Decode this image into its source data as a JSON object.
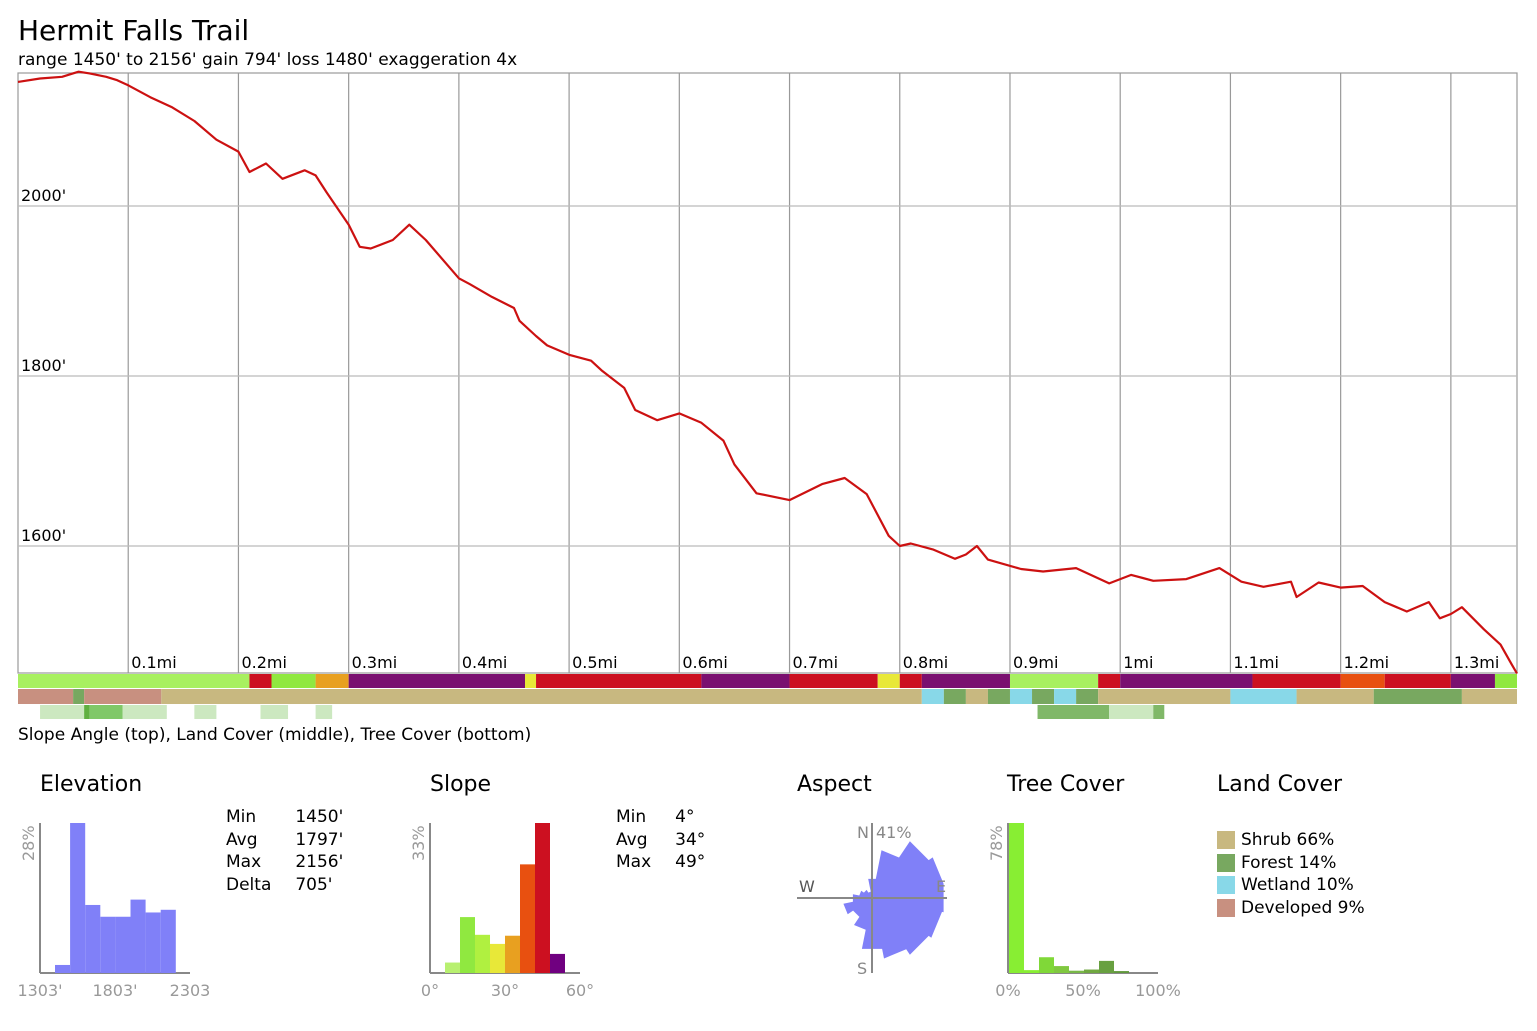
{
  "title": "Hermit Falls Trail",
  "subtitle": "range 1450' to 2156'  gain 794'  loss 1480'  exaggeration 4x",
  "strip_caption": "Slope Angle (top), Land Cover (middle), Tree Cover (bottom)",
  "colors": {
    "profile_line": "#cc1111",
    "grid": "#999999",
    "elevation_hist": "#8080f8",
    "aspect_rose": "#8080f8",
    "tree_hist": "#88ee33",
    "shrub": "#c8b880",
    "forest": "#78a860",
    "wetland": "#88d8e8",
    "developed": "#c89080"
  },
  "chart_data": [
    {
      "type": "line",
      "name": "elevation-profile",
      "x_unit": "mi",
      "xlim": [
        0,
        1.36
      ],
      "ylim": [
        1450,
        2156
      ],
      "y_ticks": [
        2000,
        1800,
        1600
      ],
      "y_tick_labels": [
        "2000'",
        "1800'",
        "1600'"
      ],
      "x_ticks": [
        0.1,
        0.2,
        0.3,
        0.4,
        0.5,
        0.6,
        0.7,
        0.8,
        0.9,
        1.0,
        1.1,
        1.2,
        1.3
      ],
      "x_tick_labels": [
        "0.1mi",
        "0.2mi",
        "0.3mi",
        "0.4mi",
        "0.5mi",
        "0.6mi",
        "0.7mi",
        "0.8mi",
        "0.9mi",
        "1mi",
        "1.1mi",
        "1.2mi",
        "1.3mi"
      ],
      "grid": true,
      "x": [
        0,
        0.02,
        0.04,
        0.055,
        0.065,
        0.08,
        0.09,
        0.1,
        0.12,
        0.14,
        0.16,
        0.18,
        0.2,
        0.21,
        0.225,
        0.24,
        0.26,
        0.27,
        0.28,
        0.3,
        0.31,
        0.32,
        0.34,
        0.355,
        0.37,
        0.4,
        0.41,
        0.43,
        0.45,
        0.455,
        0.47,
        0.48,
        0.5,
        0.52,
        0.53,
        0.55,
        0.56,
        0.58,
        0.6,
        0.62,
        0.64,
        0.65,
        0.67,
        0.7,
        0.73,
        0.75,
        0.77,
        0.79,
        0.8,
        0.81,
        0.83,
        0.85,
        0.86,
        0.87,
        0.88,
        0.91,
        0.93,
        0.96,
        0.99,
        1.01,
        1.03,
        1.06,
        1.09,
        1.11,
        1.13,
        1.155,
        1.16,
        1.18,
        1.2,
        1.22,
        1.24,
        1.26,
        1.28,
        1.29,
        1.3,
        1.31,
        1.33,
        1.345,
        1.355,
        1.36
      ],
      "y": [
        2146,
        2150,
        2152,
        2158,
        2156,
        2152,
        2148,
        2142,
        2128,
        2116,
        2100,
        2078,
        2064,
        2040,
        2050,
        2032,
        2042,
        2036,
        2016,
        1978,
        1952,
        1950,
        1960,
        1978,
        1960,
        1915,
        1908,
        1893,
        1880,
        1865,
        1847,
        1836,
        1825,
        1818,
        1806,
        1786,
        1760,
        1748,
        1756,
        1745,
        1724,
        1696,
        1662,
        1654,
        1673,
        1680,
        1661,
        1612,
        1600,
        1603,
        1596,
        1585,
        1590,
        1600,
        1584,
        1573,
        1570,
        1574,
        1556,
        1566,
        1559,
        1561,
        1574,
        1558,
        1552,
        1558,
        1540,
        1557,
        1551,
        1553,
        1534,
        1523,
        1534,
        1515,
        1520,
        1528,
        1502,
        1484,
        1461,
        1450
      ]
    },
    {
      "type": "bar",
      "name": "Elevation",
      "title": "Elevation",
      "y_axis_label": "28%",
      "x_tick_labels": [
        "1303'",
        "1803'",
        "2303"
      ],
      "xlim": [
        1303,
        2303
      ],
      "categories": [
        "1403-1503",
        "1503-1603",
        "1603-1703",
        "1703-1803",
        "1803-1903",
        "1903-2003",
        "2003-2103",
        "2103-2203"
      ],
      "values": [
        1.5,
        28,
        12.7,
        10.5,
        10.5,
        13.7,
        11.3,
        11.8
      ]
    },
    {
      "type": "bar",
      "name": "Slope",
      "title": "Slope",
      "y_axis_label": "33%",
      "x_tick_labels": [
        "0°",
        "30°",
        "60°"
      ],
      "xlim": [
        0,
        60
      ],
      "categories": [
        "5-10",
        "10-15",
        "15-20",
        "20-25",
        "25-30",
        "30-35",
        "35-40",
        "40-45",
        "45-50"
      ],
      "values": [
        2.3,
        12.3,
        8.4,
        6.4,
        8.2,
        23.9,
        33,
        4.2,
        0
      ],
      "bar_colors": [
        "#b8f070",
        "#90e840",
        "#b0f040",
        "#e8e838",
        "#e8a020",
        "#e85010",
        "#cc1020",
        "#700080",
        "#1020d0"
      ]
    },
    {
      "type": "pie",
      "name": "Aspect",
      "title": "Aspect",
      "direction_labels": [
        "N",
        "E",
        "S",
        "W"
      ],
      "max_label": "41%",
      "categories": [
        "N",
        "NNE",
        "NE",
        "ENE",
        "E",
        "ESE",
        "SE",
        "SSE",
        "S",
        "SSW",
        "SW",
        "WSW",
        "W",
        "WNW",
        "NW",
        "NNW"
      ],
      "values": [
        12,
        30,
        42,
        45,
        45,
        44,
        42,
        38,
        32,
        20,
        14,
        18,
        12,
        8,
        6,
        4
      ]
    },
    {
      "type": "bar",
      "name": "Tree Cover",
      "title": "Tree Cover",
      "y_axis_label": "78%",
      "x_tick_labels": [
        "0%",
        "50%",
        "100%"
      ],
      "xlim": [
        0,
        100
      ],
      "categories": [
        "0-10",
        "10-20",
        "20-30",
        "30-40",
        "40-50",
        "50-60",
        "60-70",
        "70-80",
        "80-90",
        "90-100"
      ],
      "values": [
        78,
        1.5,
        8.2,
        3.6,
        1.2,
        1.8,
        6.3,
        1,
        0,
        0
      ],
      "bar_colors": [
        "#88ee33",
        "#88ee33",
        "#80d838",
        "#80c840",
        "#78b848",
        "#70a840",
        "#68a040",
        "#60983c",
        "#589038",
        "#508834"
      ]
    },
    {
      "type": "table",
      "name": "Land Cover",
      "title": "Land Cover",
      "categories": [
        "Shrub",
        "Forest",
        "Wetland",
        "Developed"
      ],
      "values": [
        66,
        14,
        10,
        9
      ],
      "labels": [
        "Shrub 66%",
        "Forest 14%",
        "Wetland 10%",
        "Developed 9%"
      ]
    }
  ],
  "elevation_stats": [
    {
      "label": "Min",
      "value": "1450'"
    },
    {
      "label": "Avg",
      "value": "1797'"
    },
    {
      "label": "Max",
      "value": "2156'"
    },
    {
      "label": "Delta",
      "value": "705'"
    }
  ],
  "slope_stats": [
    {
      "label": "Min",
      "value": "4°"
    },
    {
      "label": "Avg",
      "value": "34°"
    },
    {
      "label": "Max",
      "value": "49°"
    }
  ],
  "slope_strip": [
    {
      "range": [
        0,
        0.21
      ],
      "color": "#a8f060"
    },
    {
      "range": [
        0.21,
        0.23
      ],
      "color": "#cc1020"
    },
    {
      "range": [
        0.23,
        0.27
      ],
      "color": "#90e840"
    },
    {
      "range": [
        0.27,
        0.3
      ],
      "color": "#e8a020"
    },
    {
      "range": [
        0.3,
        0.46
      ],
      "color": "#7a1070"
    },
    {
      "range": [
        0.46,
        0.47
      ],
      "color": "#e8e838"
    },
    {
      "range": [
        0.47,
        0.62
      ],
      "color": "#cc1020"
    },
    {
      "range": [
        0.62,
        0.7
      ],
      "color": "#7a1070"
    },
    {
      "range": [
        0.7,
        0.78
      ],
      "color": "#cc1020"
    },
    {
      "range": [
        0.78,
        0.8
      ],
      "color": "#e8e838"
    },
    {
      "range": [
        0.8,
        0.82
      ],
      "color": "#cc1020"
    },
    {
      "range": [
        0.82,
        0.9
      ],
      "color": "#7a1070"
    },
    {
      "range": [
        0.9,
        0.98
      ],
      "color": "#a8f060"
    },
    {
      "range": [
        0.98,
        1.0
      ],
      "color": "#cc1020"
    },
    {
      "range": [
        1.0,
        1.12
      ],
      "color": "#7a1070"
    },
    {
      "range": [
        1.12,
        1.2
      ],
      "color": "#cc1020"
    },
    {
      "range": [
        1.2,
        1.24
      ],
      "color": "#e85010"
    },
    {
      "range": [
        1.24,
        1.3
      ],
      "color": "#cc1020"
    },
    {
      "range": [
        1.3,
        1.34
      ],
      "color": "#7a1070"
    },
    {
      "range": [
        1.34,
        1.36
      ],
      "color": "#90e840"
    }
  ],
  "land_strip": [
    {
      "range": [
        0,
        0.05
      ],
      "color": "#c89080"
    },
    {
      "range": [
        0.05,
        0.06
      ],
      "color": "#78a860"
    },
    {
      "range": [
        0.06,
        0.13
      ],
      "color": "#c89080"
    },
    {
      "range": [
        0.13,
        0.82
      ],
      "color": "#c8b880"
    },
    {
      "range": [
        0.82,
        0.84
      ],
      "color": "#88d8e8"
    },
    {
      "range": [
        0.84,
        0.86
      ],
      "color": "#78a860"
    },
    {
      "range": [
        0.86,
        0.88
      ],
      "color": "#c8b880"
    },
    {
      "range": [
        0.88,
        0.9
      ],
      "color": "#78a860"
    },
    {
      "range": [
        0.9,
        0.92
      ],
      "color": "#88d8e8"
    },
    {
      "range": [
        0.92,
        0.94
      ],
      "color": "#78a860"
    },
    {
      "range": [
        0.94,
        0.96
      ],
      "color": "#88d8e8"
    },
    {
      "range": [
        0.96,
        0.98
      ],
      "color": "#78a860"
    },
    {
      "range": [
        0.98,
        1.1
      ],
      "color": "#c8b880"
    },
    {
      "range": [
        1.1,
        1.16
      ],
      "color": "#88d8e8"
    },
    {
      "range": [
        1.16,
        1.23
      ],
      "color": "#c8b880"
    },
    {
      "range": [
        1.23,
        1.31
      ],
      "color": "#78a860"
    },
    {
      "range": [
        1.31,
        1.36
      ],
      "color": "#c8b880"
    }
  ],
  "tree_strip": [
    {
      "range": [
        0.02,
        0.06
      ],
      "color": "#cce8c0"
    },
    {
      "range": [
        0.06,
        0.065
      ],
      "color": "#60b040"
    },
    {
      "range": [
        0.065,
        0.095
      ],
      "color": "#80c868"
    },
    {
      "range": [
        0.095,
        0.135
      ],
      "color": "#cce8c0"
    },
    {
      "range": [
        0.16,
        0.18
      ],
      "color": "#cce8c0"
    },
    {
      "range": [
        0.22,
        0.245
      ],
      "color": "#cce8c0"
    },
    {
      "range": [
        0.27,
        0.285
      ],
      "color": "#cce8c0"
    },
    {
      "range": [
        0.925,
        0.99
      ],
      "color": "#80b868"
    },
    {
      "range": [
        0.99,
        1.03
      ],
      "color": "#cce8c0"
    },
    {
      "range": [
        1.03,
        1.04
      ],
      "color": "#80b868"
    }
  ]
}
